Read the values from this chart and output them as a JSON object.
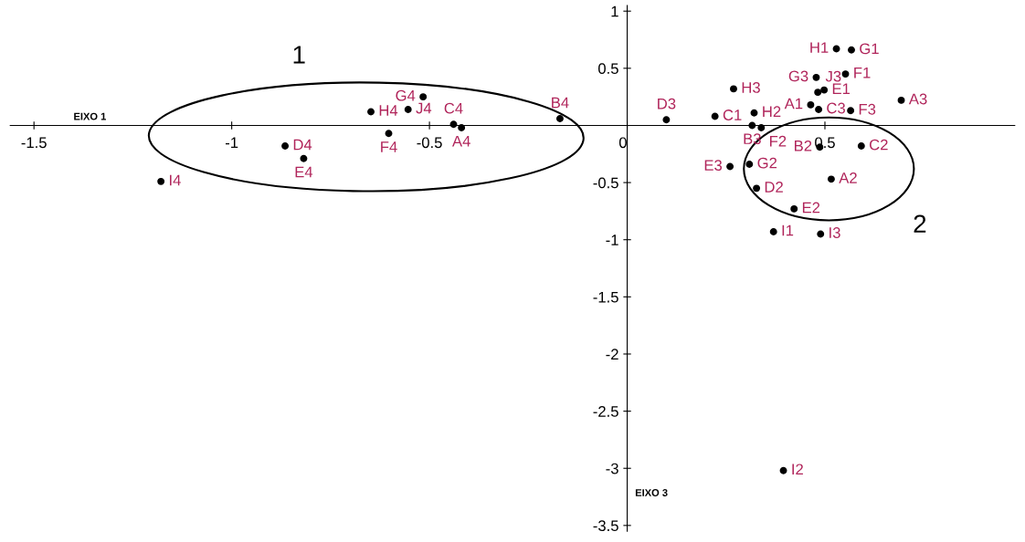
{
  "chart_data": {
    "type": "scatter",
    "xlabel": "EIXO 1",
    "ylabel": "EIXO 3",
    "xlim": [
      -1.56,
      0.98
    ],
    "ylim": [
      -3.55,
      1.05
    ],
    "xticks": [
      -1.5,
      -1,
      -0.5,
      {
        "value": 0,
        "label": "0"
      },
      0.5
    ],
    "yticks": [
      1,
      0.5,
      -0.5,
      -1,
      -1.5,
      -2,
      -2.5,
      -3,
      -3.5
    ],
    "grid": false,
    "marker": "circle",
    "series": [
      {
        "color": "#000000",
        "x": [
          -1.179,
          -0.865,
          -0.818,
          -0.648,
          -0.603,
          -0.554,
          -0.516,
          -0.439,
          -0.419,
          -0.17,
          0.099,
          0.222,
          0.269,
          0.321,
          0.316,
          0.339,
          0.309,
          0.26,
          0.327,
          0.422,
          0.37,
          0.489,
          0.395,
          0.464,
          0.478,
          0.482,
          0.498,
          0.484,
          0.529,
          0.567,
          0.552,
          0.565,
          0.693,
          0.592,
          0.487,
          0.516
        ],
        "values": [
          -0.49,
          -0.18,
          -0.29,
          0.12,
          -0.07,
          0.14,
          0.25,
          0.01,
          -0.02,
          0.06,
          0.05,
          0.08,
          0.32,
          0.11,
          0.0,
          -0.02,
          -0.34,
          -0.36,
          -0.55,
          -0.73,
          -0.93,
          -0.95,
          -3.02,
          0.18,
          0.42,
          0.29,
          0.31,
          0.14,
          0.67,
          0.66,
          0.45,
          0.13,
          0.22,
          -0.18,
          -0.19,
          -0.47
        ]
      }
    ],
    "annotations": [
      "1",
      "2",
      {
        "text": "I4",
        "x": -1.179,
        "y": -0.49
      },
      {
        "text": "D4",
        "x": -0.865,
        "y": -0.18
      },
      {
        "text": "E4",
        "x": -0.818,
        "y": -0.29
      },
      {
        "text": "H4",
        "x": -0.648,
        "y": 0.12
      },
      {
        "text": "F4",
        "x": -0.603,
        "y": -0.07
      },
      {
        "text": "J4",
        "x": -0.554,
        "y": 0.14
      },
      {
        "text": "G4",
        "x": -0.516,
        "y": 0.25
      },
      {
        "text": "C4",
        "x": -0.439,
        "y": 0.01
      },
      {
        "text": "A4",
        "x": -0.419,
        "y": -0.02
      },
      {
        "text": "B4",
        "x": -0.17,
        "y": 0.06
      },
      {
        "text": "D3",
        "x": 0.099,
        "y": 0.05
      },
      {
        "text": "C1",
        "x": 0.222,
        "y": 0.08
      },
      {
        "text": "H3",
        "x": 0.269,
        "y": 0.32
      },
      {
        "text": "H2",
        "x": 0.321,
        "y": 0.11
      },
      {
        "text": "B3",
        "x": 0.316,
        "y": 0.0
      },
      {
        "text": "F2",
        "x": 0.339,
        "y": -0.02
      },
      {
        "text": "G2",
        "x": 0.309,
        "y": -0.34
      },
      {
        "text": "E3",
        "x": 0.26,
        "y": -0.36
      },
      {
        "text": "D2",
        "x": 0.327,
        "y": -0.55
      },
      {
        "text": "E2",
        "x": 0.422,
        "y": -0.73
      },
      {
        "text": "I1",
        "x": 0.37,
        "y": -0.93
      },
      {
        "text": "I3",
        "x": 0.489,
        "y": -0.95
      },
      {
        "text": "I2",
        "x": 0.395,
        "y": -3.02
      },
      {
        "text": "A1",
        "x": 0.464,
        "y": 0.18
      },
      {
        "text": "G3",
        "x": 0.478,
        "y": 0.42
      },
      {
        "text": "J3",
        "x": 0.482,
        "y": 0.29
      },
      {
        "text": "E1",
        "x": 0.498,
        "y": 0.31
      },
      {
        "text": "C3",
        "x": 0.484,
        "y": 0.14
      },
      {
        "text": "H1",
        "x": 0.529,
        "y": 0.67
      },
      {
        "text": "G1",
        "x": 0.567,
        "y": 0.66
      },
      {
        "text": "F1",
        "x": 0.552,
        "y": 0.45
      },
      {
        "text": "F3",
        "x": 0.565,
        "y": 0.13
      },
      {
        "text": "A3",
        "x": 0.693,
        "y": 0.22
      },
      {
        "text": "C2",
        "x": 0.592,
        "y": -0.18
      },
      {
        "text": "B2",
        "x": 0.487,
        "y": -0.19
      },
      {
        "text": "A2",
        "x": 0.516,
        "y": -0.47
      }
    ]
  }
}
